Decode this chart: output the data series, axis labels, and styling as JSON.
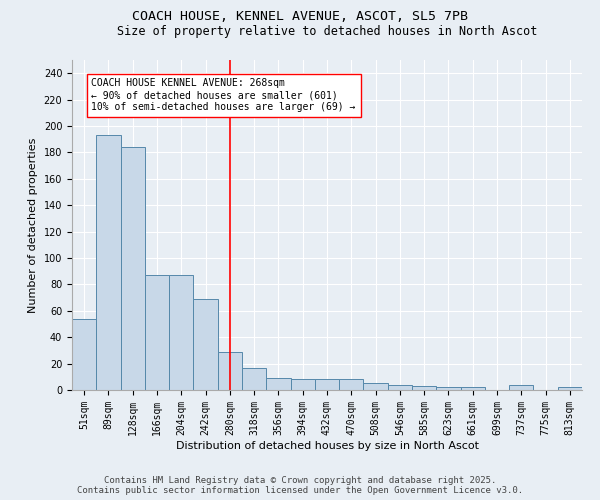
{
  "title_line1": "COACH HOUSE, KENNEL AVENUE, ASCOT, SL5 7PB",
  "title_line2": "Size of property relative to detached houses in North Ascot",
  "categories": [
    "51sqm",
    "89sqm",
    "128sqm",
    "166sqm",
    "204sqm",
    "242sqm",
    "280sqm",
    "318sqm",
    "356sqm",
    "394sqm",
    "432sqm",
    "470sqm",
    "508sqm",
    "546sqm",
    "585sqm",
    "623sqm",
    "661sqm",
    "699sqm",
    "737sqm",
    "775sqm",
    "813sqm"
  ],
  "values": [
    54,
    193,
    184,
    87,
    87,
    69,
    29,
    17,
    9,
    8,
    8,
    8,
    5,
    4,
    3,
    2,
    2,
    0,
    4,
    0,
    2
  ],
  "bar_color": "#c8d8e8",
  "bar_edge_color": "#5588aa",
  "xlabel": "Distribution of detached houses by size in North Ascot",
  "ylabel": "Number of detached properties",
  "ylim": [
    0,
    250
  ],
  "yticks": [
    0,
    20,
    40,
    60,
    80,
    100,
    120,
    140,
    160,
    180,
    200,
    220,
    240
  ],
  "red_line_x": 6.0,
  "annotation_text": "COACH HOUSE KENNEL AVENUE: 268sqm\n← 90% of detached houses are smaller (601)\n10% of semi-detached houses are larger (69) →",
  "footer_line1": "Contains HM Land Registry data © Crown copyright and database right 2025.",
  "footer_line2": "Contains public sector information licensed under the Open Government Licence v3.0.",
  "background_color": "#e8eef4",
  "grid_color": "#ffffff",
  "title_fontsize": 9.5,
  "subtitle_fontsize": 8.5,
  "label_fontsize": 8,
  "tick_fontsize": 7,
  "annotation_fontsize": 7,
  "footer_fontsize": 6.5,
  "fig_width": 6.0,
  "fig_height": 5.0,
  "dpi": 100
}
